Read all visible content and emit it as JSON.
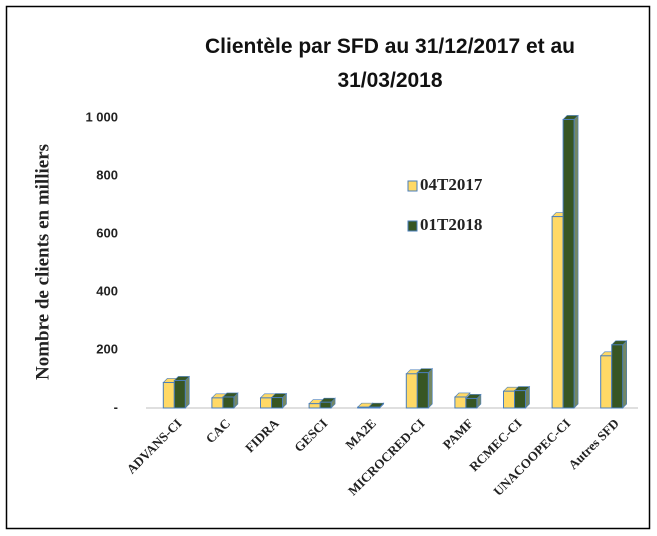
{
  "chart_data": {
    "type": "bar",
    "title": "Clientèle par SFD au 31/12/2017 et au 31/03/2018",
    "y_label": "Nombre de clients en milliers",
    "categories": [
      "ADVANS-CI",
      "CAC",
      "FIDRA",
      "GESCI",
      "MA2E",
      "MICROCRED-CI",
      "PAMF",
      "RCMEC-CI",
      "UNACOOPEC-CI",
      "Autres SFD"
    ],
    "series": [
      {
        "name": "04T2017",
        "color": "#ffd966",
        "values": [
          88,
          35,
          35,
          15,
          3,
          118,
          38,
          58,
          660,
          180
        ]
      },
      {
        "name": "01T2018",
        "color": "#375623",
        "values": [
          95,
          38,
          36,
          20,
          3,
          122,
          33,
          60,
          995,
          218
        ]
      }
    ],
    "ylim": [
      0,
      1000
    ],
    "yticks": [
      {
        "value": 0,
        "label": "-"
      },
      200,
      400,
      600,
      800,
      {
        "value": 1000,
        "label": "1 000"
      }
    ]
  }
}
